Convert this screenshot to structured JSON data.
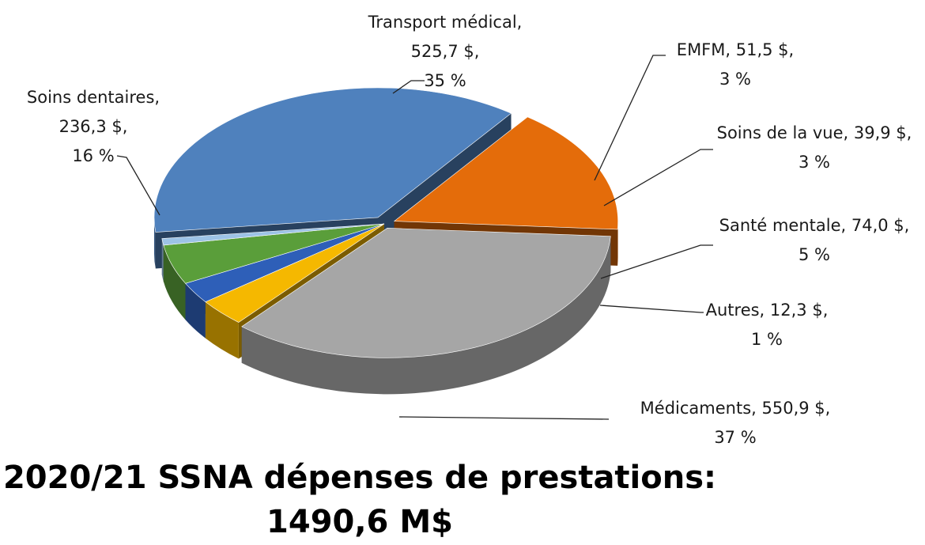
{
  "chart_data": {
    "type": "pie",
    "title": "2020/21 SSNA dépenses de prestations:",
    "subtitle": "1490,6 M$",
    "slices": [
      {
        "name": "Médicaments",
        "value": 550.9,
        "value_label": "550,9 $",
        "percent_label": "37 %",
        "color": "#4f81bd"
      },
      {
        "name": "Soins dentaires",
        "value": 236.3,
        "value_label": "236,3 $",
        "percent_label": "16 %",
        "color": "#e46c0a"
      },
      {
        "name": "Transport médical",
        "value": 525.7,
        "value_label": "525,7 $",
        "percent_label": "35 %",
        "color": "#a6a6a6"
      },
      {
        "name": "EMFM",
        "value": 51.5,
        "value_label": "51,5 $",
        "percent_label": "3 %",
        "color": "#f5b800"
      },
      {
        "name": "Soins de la vue",
        "value": 39.9,
        "value_label": "39,9 $",
        "percent_label": "3 %",
        "color": "#2e5fb8"
      },
      {
        "name": "Santé mentale",
        "value": 74.0,
        "value_label": "74,0 $",
        "percent_label": "5 %",
        "color": "#5a9e3a"
      },
      {
        "name": "Autres",
        "value": 12.3,
        "value_label": "12,3 $",
        "percent_label": "1 %",
        "color": "#9dc3e6"
      }
    ],
    "style": "3d-exploded",
    "legend": "none"
  }
}
